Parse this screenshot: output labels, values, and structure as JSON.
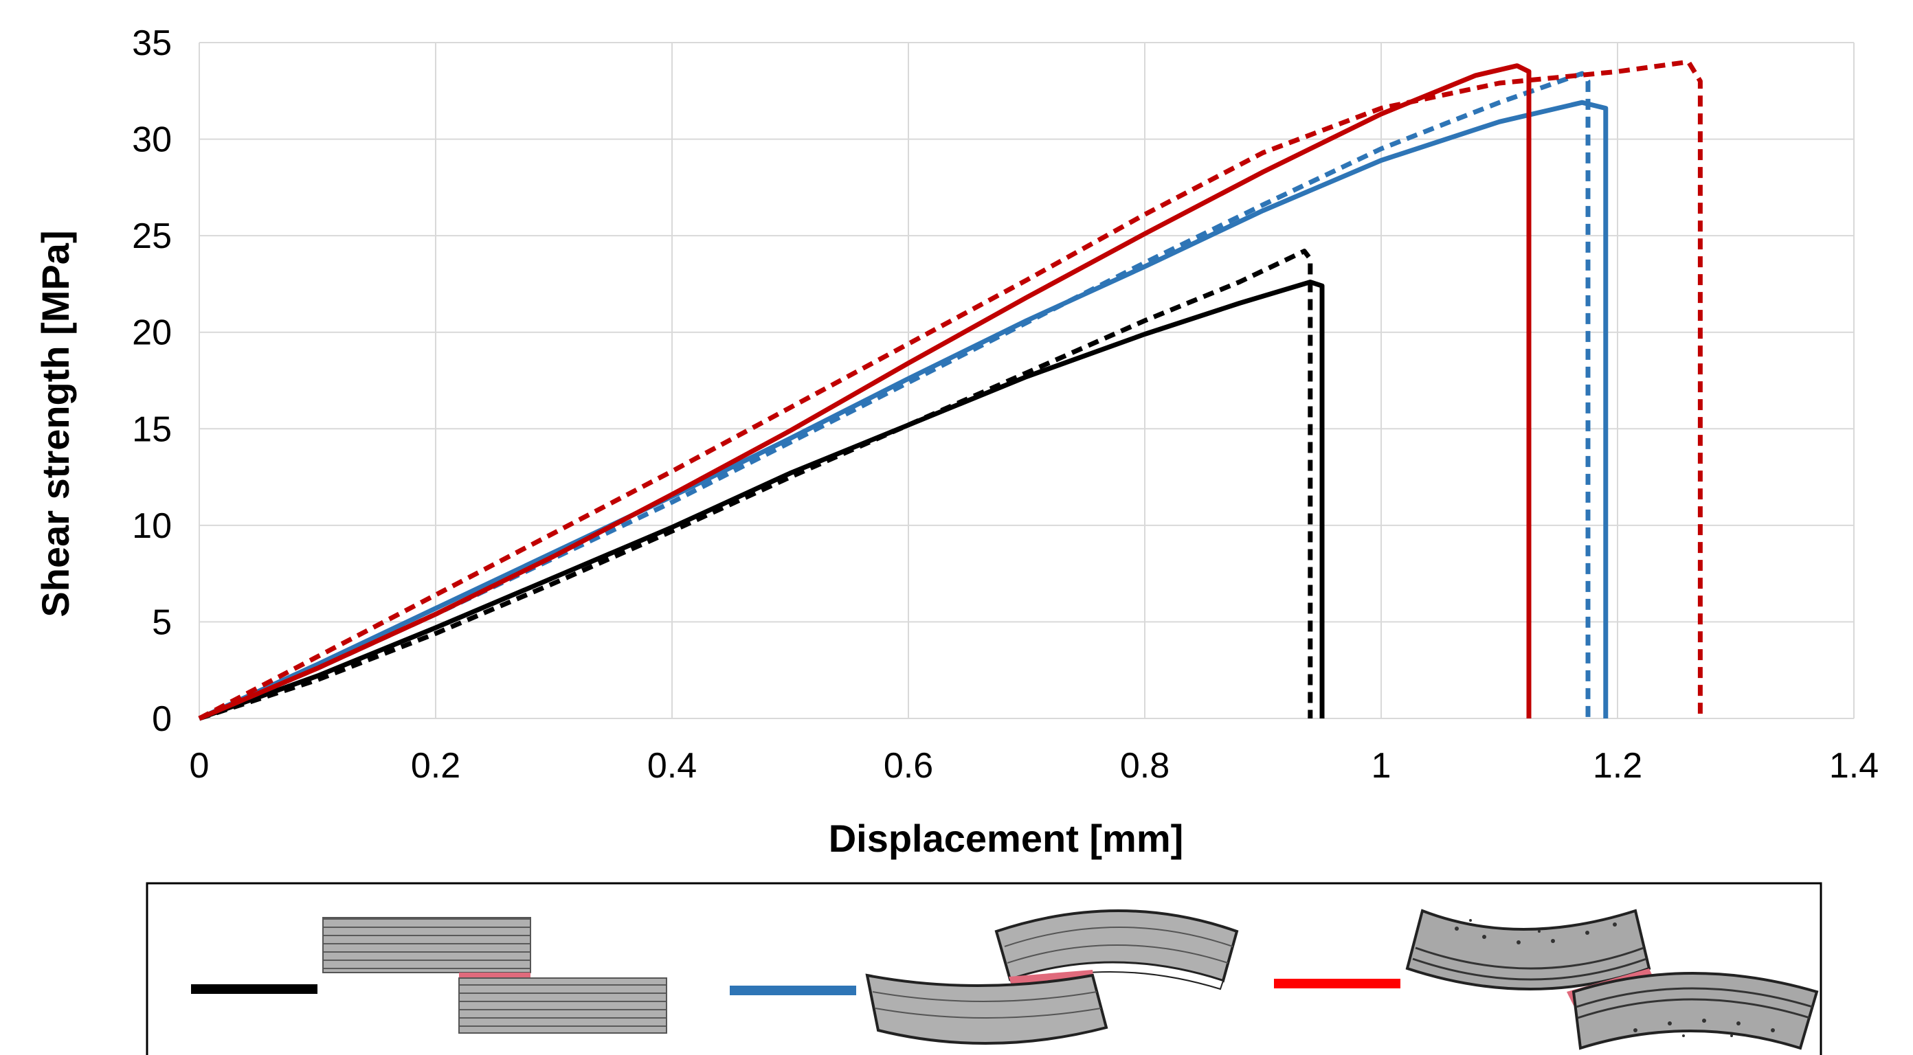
{
  "chart_data": {
    "type": "line",
    "title": "",
    "xlabel": "Displacement [mm]",
    "ylabel": "Shear strength [MPa]",
    "xlim": [
      0,
      1.4
    ],
    "ylim": [
      0,
      35
    ],
    "x_ticks": [
      "0",
      "0.2",
      "0.4",
      "0.6",
      "0.8",
      "1",
      "1.2",
      "1.4"
    ],
    "y_ticks": [
      "0",
      "5",
      "10",
      "15",
      "20",
      "25",
      "30",
      "35"
    ],
    "grid": true,
    "legend": "bottom",
    "series": [
      {
        "color": "#000000",
        "dash": false,
        "legend_group": 0,
        "x": [
          0,
          0.1,
          0.2,
          0.3,
          0.4,
          0.5,
          0.6,
          0.7,
          0.8,
          0.88,
          0.94,
          0.95,
          0.95
        ],
        "y": [
          0,
          2.2,
          4.7,
          7.3,
          9.9,
          12.7,
          15.2,
          17.7,
          19.9,
          21.5,
          22.6,
          22.4,
          0
        ]
      },
      {
        "color": "#000000",
        "dash": true,
        "legend_group": 0,
        "x": [
          0,
          0.1,
          0.2,
          0.3,
          0.4,
          0.5,
          0.6,
          0.7,
          0.8,
          0.88,
          0.935,
          0.94,
          0.94
        ],
        "y": [
          0,
          2.0,
          4.4,
          7.0,
          9.7,
          12.5,
          15.2,
          17.9,
          20.6,
          22.6,
          24.2,
          23.8,
          0
        ]
      },
      {
        "color": "#2e75b6",
        "dash": false,
        "legend_group": 1,
        "x": [
          0,
          0.1,
          0.2,
          0.3,
          0.4,
          0.5,
          0.6,
          0.7,
          0.8,
          0.9,
          1.0,
          1.1,
          1.17,
          1.19,
          1.19
        ],
        "y": [
          0,
          2.8,
          5.7,
          8.6,
          11.5,
          14.5,
          17.6,
          20.6,
          23.4,
          26.3,
          28.9,
          30.9,
          31.9,
          31.6,
          0
        ]
      },
      {
        "color": "#2e75b6",
        "dash": true,
        "legend_group": 1,
        "x": [
          0,
          0.1,
          0.2,
          0.3,
          0.4,
          0.5,
          0.6,
          0.7,
          0.8,
          0.9,
          1.0,
          1.1,
          1.17,
          1.175,
          1.175
        ],
        "y": [
          0,
          2.6,
          5.4,
          8.3,
          11.2,
          14.3,
          17.4,
          20.5,
          23.6,
          26.6,
          29.5,
          31.9,
          33.4,
          33.0,
          0
        ]
      },
      {
        "color": "#c00000",
        "dash": false,
        "legend_group": 2,
        "x": [
          0,
          0.1,
          0.2,
          0.3,
          0.4,
          0.5,
          0.6,
          0.7,
          0.8,
          0.9,
          1.0,
          1.08,
          1.115,
          1.125,
          1.125
        ],
        "y": [
          0,
          2.6,
          5.4,
          8.4,
          11.6,
          14.9,
          18.4,
          21.8,
          25.1,
          28.3,
          31.3,
          33.3,
          33.8,
          33.5,
          0
        ]
      },
      {
        "color": "#c00000",
        "dash": true,
        "legend_group": 2,
        "x": [
          0,
          0.1,
          0.2,
          0.3,
          0.4,
          0.5,
          0.6,
          0.7,
          0.8,
          0.9,
          1.0,
          1.1,
          1.2,
          1.26,
          1.27,
          1.27
        ],
        "y": [
          0,
          3.2,
          6.4,
          9.6,
          12.8,
          16.1,
          19.4,
          22.7,
          26.1,
          29.3,
          31.6,
          32.9,
          33.5,
          34.0,
          33.0,
          0
        ]
      }
    ],
    "legend_entries": [
      {
        "color": "#000000",
        "diagram": "flat-laminate-joint"
      },
      {
        "color": "#2e75b6",
        "diagram": "curved-laminate-joint"
      },
      {
        "color": "#ff0000",
        "diagram": "curved-porous-laminate-joint"
      }
    ]
  }
}
